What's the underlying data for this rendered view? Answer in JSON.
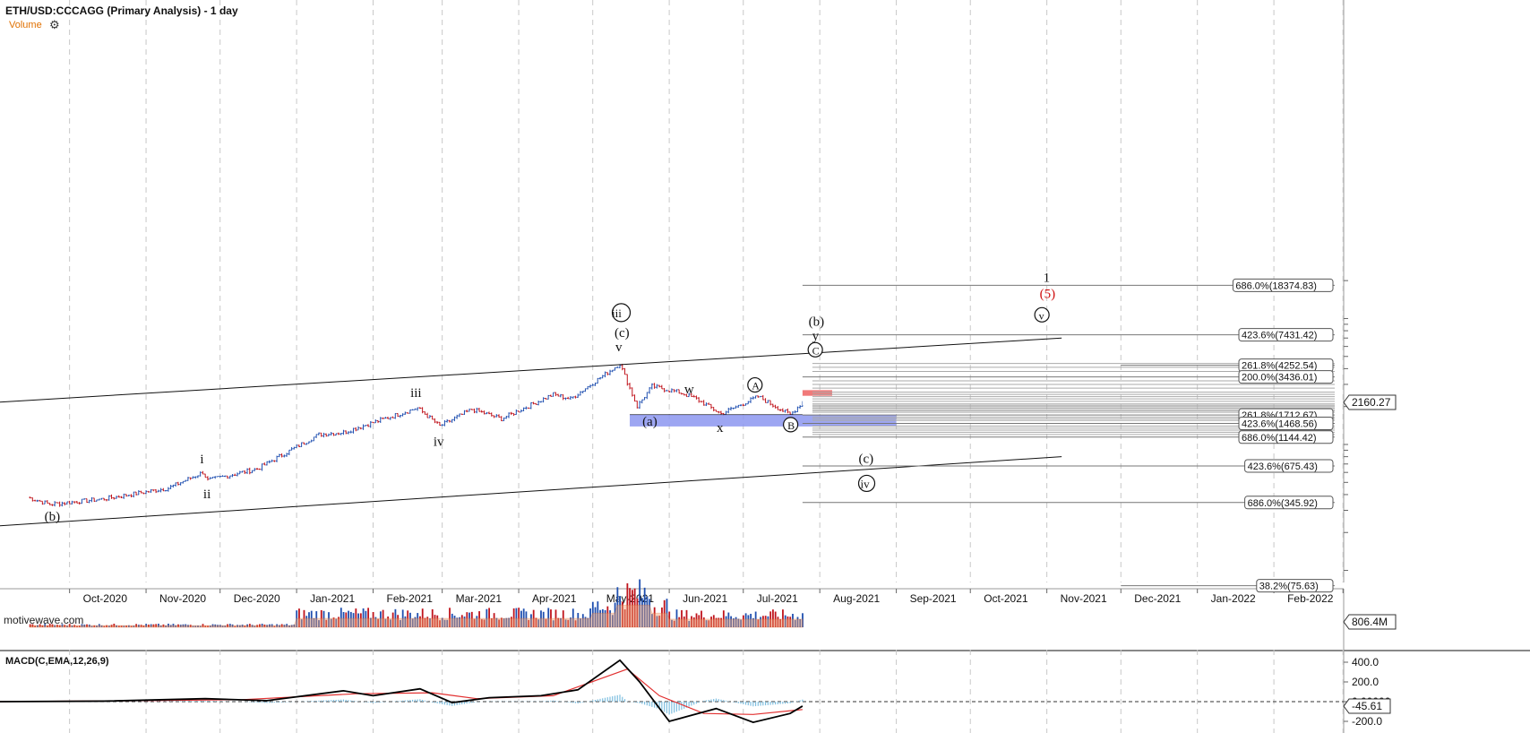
{
  "title": "ETH/USD:CCCAGG (Primary Analysis) - 1 day",
  "volume_label": "Volume",
  "settings_icon": "gear-icon",
  "watermark": "motivewave.com",
  "macd_title": "MACD(C,EMA,12,26,9)",
  "colors": {
    "up": "#1f4fb0",
    "down": "#c0141c",
    "macd": "#000000",
    "signal": "#e23030",
    "hist": "#7fbfe0",
    "zone": "#8c96f0",
    "red_zone": "#f06a6a"
  },
  "chart_data": {
    "type": "bar",
    "title": "ETH/USD:CCCAGG (Primary Analysis) - 1 day",
    "x_ticks": [
      "Oct-2020",
      "Nov-2020",
      "Dec-2020",
      "Jan-2021",
      "Feb-2021",
      "Mar-2021",
      "Apr-2021",
      "May-2021",
      "Jun-2021",
      "Jul-2021",
      "Aug-2021",
      "Sep-2021",
      "Oct-2021",
      "Nov-2021",
      "Dec-2021",
      "Jan-2022",
      "Feb-2022"
    ],
    "price_key_points": [
      {
        "date": "2020-09-14",
        "price": 380
      },
      {
        "date": "2020-09-23",
        "price": 335
      },
      {
        "date": "2020-10-15",
        "price": 370
      },
      {
        "date": "2020-11-10",
        "price": 450
      },
      {
        "date": "2020-11-24",
        "price": 600
      },
      {
        "date": "2020-11-26",
        "price": 520
      },
      {
        "date": "2020-12-16",
        "price": 640
      },
      {
        "date": "2021-01-10",
        "price": 1200
      },
      {
        "date": "2021-01-20",
        "price": 1250
      },
      {
        "date": "2021-02-19",
        "price": 1950
      },
      {
        "date": "2021-02-28",
        "price": 1400
      },
      {
        "date": "2021-03-13",
        "price": 1900
      },
      {
        "date": "2021-03-25",
        "price": 1600
      },
      {
        "date": "2021-04-15",
        "price": 2500
      },
      {
        "date": "2021-04-22",
        "price": 2300
      },
      {
        "date": "2021-05-12",
        "price": 4380
      },
      {
        "date": "2021-05-19",
        "price": 2000
      },
      {
        "date": "2021-05-25",
        "price": 2900
      },
      {
        "date": "2021-06-05",
        "price": 2600
      },
      {
        "date": "2021-06-12",
        "price": 2300
      },
      {
        "date": "2021-06-22",
        "price": 1750
      },
      {
        "date": "2021-07-07",
        "price": 2400
      },
      {
        "date": "2021-07-20",
        "price": 1720
      },
      {
        "date": "2021-07-25",
        "price": 2160
      }
    ],
    "last_price": "2160.27",
    "last_volume": "806.4M",
    "macd_axis": [
      "400.0",
      "200.0",
      "0.00000",
      "-200.0"
    ],
    "macd_last": "-45.61",
    "fib_levels": [
      {
        "label": "686.0%(18374.83)",
        "price": 18374.83
      },
      {
        "label": "423.6%(7431.42)",
        "price": 7431.42
      },
      {
        "label": "261.8%(4252.54)",
        "price": 4252.54
      },
      {
        "label": "200.0%(3436.01)",
        "price": 3436.01
      },
      {
        "label": "261.8%(1712.67)",
        "price": 1712.67
      },
      {
        "label": "423.6%(1468.56)",
        "price": 1468.56
      },
      {
        "label": "686.0%(1144.42)",
        "price": 1144.42
      },
      {
        "label": "423.6%(675.43)",
        "price": 675.43
      },
      {
        "label": "686.0%(345.92)",
        "price": 345.92
      },
      {
        "label": "38.2%(75.63)",
        "price": 75.63
      }
    ],
    "wave_labels": [
      {
        "text": "(b)",
        "date": "2020-09-23",
        "price": 335
      },
      {
        "text": "i",
        "date": "2020-11-24",
        "price": 600
      },
      {
        "text": "ii",
        "date": "2020-11-26",
        "price": 520
      },
      {
        "text": "iii",
        "date": "2021-02-19",
        "price": 1950
      },
      {
        "text": "iv",
        "date": "2021-02-28",
        "price": 1400
      },
      {
        "text": "v",
        "date": "2021-05-12",
        "price": 4380
      },
      {
        "text": "(c)",
        "date": "2021-05-12",
        "price": 4380
      },
      {
        "text": "iii",
        "date": "2021-05-12",
        "price": 4380,
        "circled": true
      },
      {
        "text": "w",
        "date": "2021-05-25",
        "price": 2900
      },
      {
        "text": "(a)",
        "date": "2021-05-24",
        "price": 1900
      },
      {
        "text": "x",
        "date": "2021-06-22",
        "price": 1750
      },
      {
        "text": "A",
        "date": "2021-07-07",
        "price": 2400,
        "circled": true
      },
      {
        "text": "B",
        "date": "2021-07-20",
        "price": 1720,
        "circled": true
      },
      {
        "text": "C",
        "date": "2021-07-26",
        "price": 3400,
        "circled": true
      },
      {
        "text": "y",
        "date": "2021-07-26",
        "price": 3400
      },
      {
        "text": "(b)",
        "date": "2021-07-26",
        "price": 3400
      },
      {
        "text": "(c)",
        "date": "2021-08-20",
        "price": 900
      },
      {
        "text": "iv",
        "date": "2021-08-20",
        "price": 900,
        "circled": true
      },
      {
        "text": "1",
        "date": "2021-11-01",
        "price": 18374
      },
      {
        "text": "(5)",
        "date": "2021-11-01",
        "price": 18374,
        "red": true
      },
      {
        "text": "v",
        "date": "2021-11-01",
        "price": 18374,
        "circled": true
      }
    ]
  }
}
